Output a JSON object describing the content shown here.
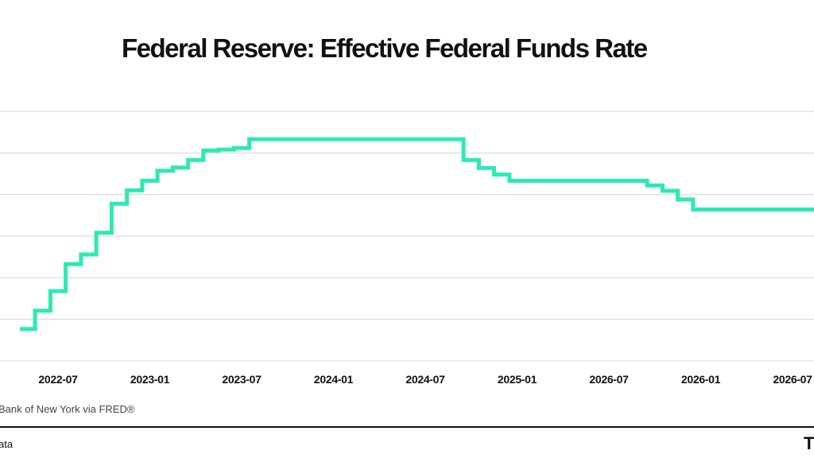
{
  "chart_data": {
    "type": "line",
    "title": "Federal Reserve: Effective Federal Funds Rate",
    "xlabel": "",
    "ylabel": "",
    "x_tick_labels": [
      "2022-07",
      "2023-01",
      "2023-07",
      "2024-01",
      "2024-07",
      "2025-01",
      "2026-07",
      "2026-01",
      "2026-07"
    ],
    "grid": true,
    "legend": "none",
    "ylim": [
      0,
      6
    ],
    "y_gridlines": [
      0,
      1,
      2,
      3,
      4,
      5,
      6
    ],
    "series": [
      {
        "color": "#2ee8b6",
        "step": true,
        "x": [
          "2022-05",
          "2022-06",
          "2022-07",
          "2022-08",
          "2022-09",
          "2022-10",
          "2022-11",
          "2022-12",
          "2023-01",
          "2023-02",
          "2023-03",
          "2023-04",
          "2023-05",
          "2023-06",
          "2023-07",
          "2023-08",
          "2023-09",
          "2023-10",
          "2023-11",
          "2023-12",
          "2024-01",
          "2024-02",
          "2024-03",
          "2024-04",
          "2024-05",
          "2024-06",
          "2024-07",
          "2024-08",
          "2024-09",
          "2024-10",
          "2024-11",
          "2024-12",
          "2025-01",
          "2025-02",
          "2025-03",
          "2025-04",
          "2025-05",
          "2025-06",
          "2025-07",
          "2025-08",
          "2025-09",
          "2025-10",
          "2025-11",
          "2025-12",
          "2026-01",
          "2026-02",
          "2026-03"
        ],
        "values": [
          0.77,
          1.21,
          1.68,
          2.33,
          2.56,
          3.08,
          3.78,
          4.1,
          4.33,
          4.57,
          4.65,
          4.83,
          5.06,
          5.08,
          5.12,
          5.33,
          5.33,
          5.33,
          5.33,
          5.33,
          5.33,
          5.33,
          5.33,
          5.33,
          5.33,
          5.33,
          5.33,
          5.33,
          5.33,
          4.83,
          4.64,
          4.48,
          4.33,
          4.33,
          4.33,
          4.33,
          4.33,
          4.33,
          4.33,
          4.33,
          4.33,
          4.22,
          4.09,
          3.88,
          3.64,
          3.64,
          3.64
        ]
      }
    ]
  },
  "source": "Bank of New York via FRED®",
  "footer": {
    "left": "ata",
    "logo": "T"
  }
}
